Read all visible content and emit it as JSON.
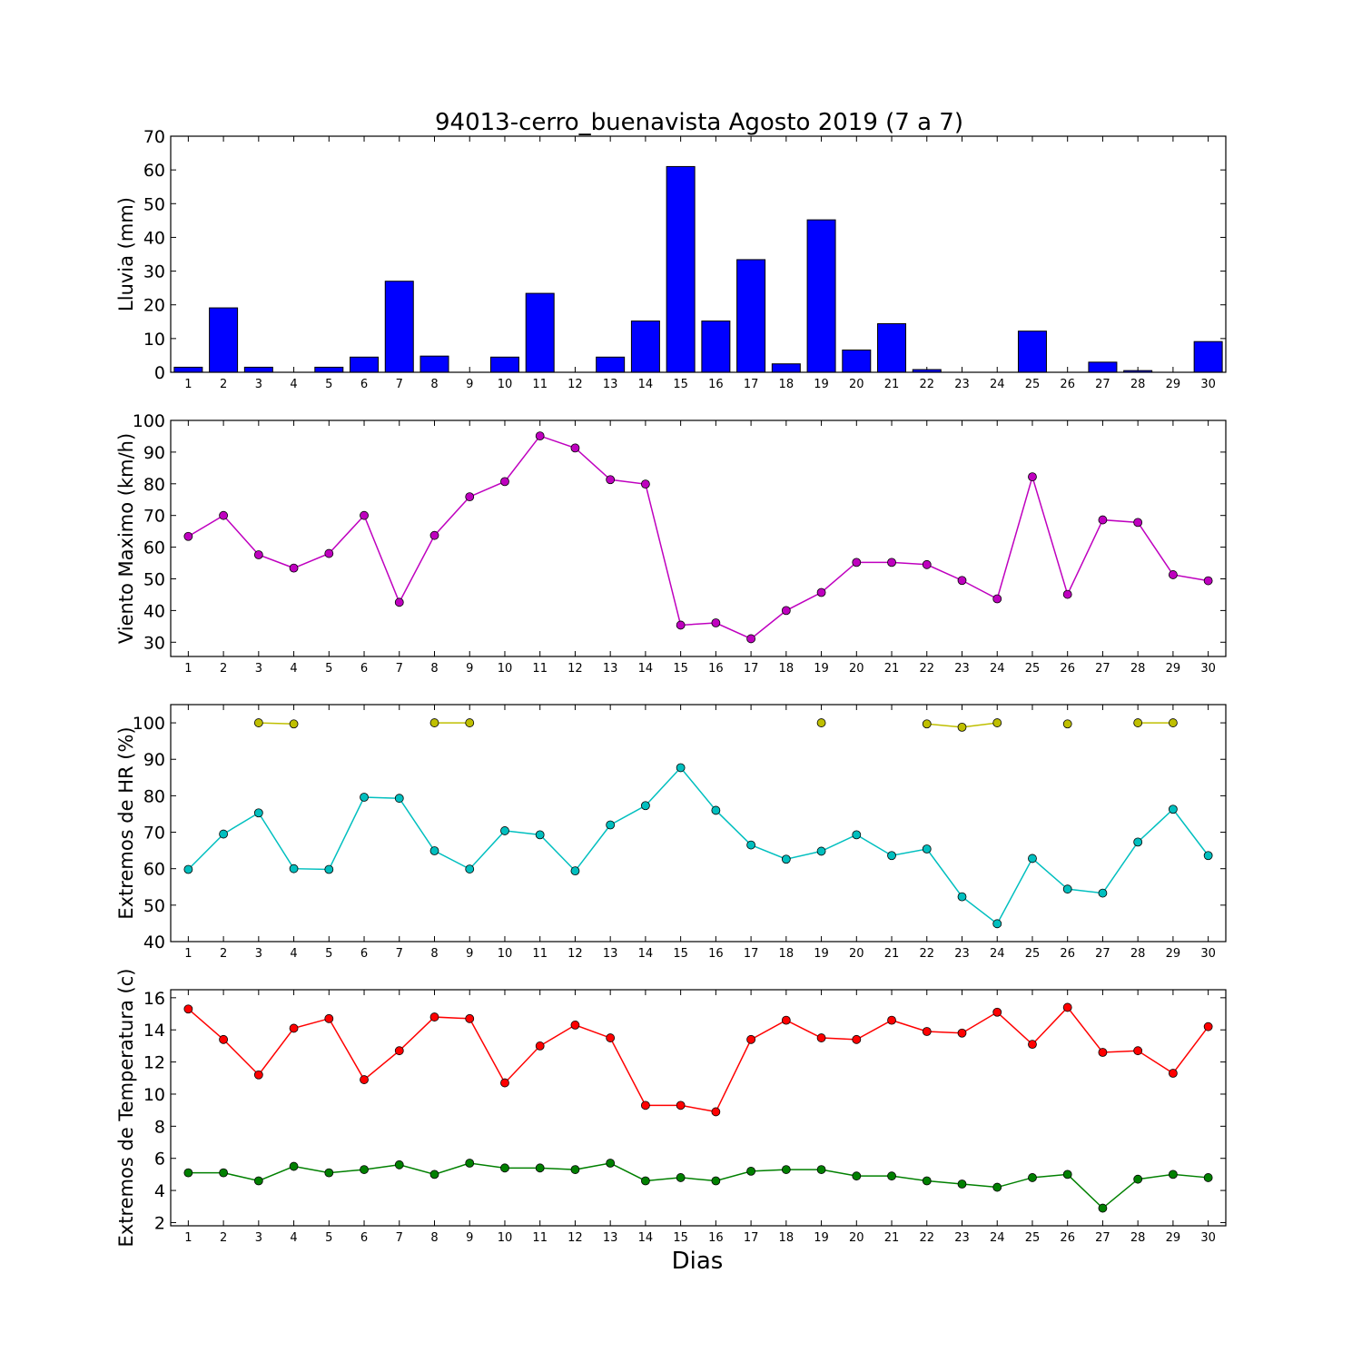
{
  "title": "94013-cerro_buenavista Agosto 2019  (7 a 7)",
  "xlabel": "Dias",
  "chart_data": [
    {
      "type": "bar",
      "ylabel": "Lluvia (mm)",
      "ylim": [
        0,
        70
      ],
      "yticks": [
        0,
        10,
        20,
        30,
        40,
        50,
        60,
        70
      ],
      "categories": [
        "1",
        "2",
        "3",
        "4",
        "5",
        "6",
        "7",
        "8",
        "9",
        "10",
        "11",
        "12",
        "13",
        "14",
        "15",
        "16",
        "17",
        "18",
        "19",
        "20",
        "21",
        "22",
        "23",
        "24",
        "25",
        "26",
        "27",
        "28",
        "29",
        "30"
      ],
      "series": [
        {
          "color": "#0000ff",
          "values": [
            1.5,
            19.1,
            1.5,
            0,
            1.5,
            4.5,
            27.0,
            4.8,
            0,
            4.5,
            23.4,
            0,
            4.5,
            15.2,
            61.0,
            15.2,
            33.4,
            2.5,
            45.2,
            6.6,
            14.4,
            0.8,
            0,
            0,
            12.2,
            0,
            3.0,
            0.5,
            0,
            9.1
          ]
        }
      ]
    },
    {
      "type": "line",
      "ylabel": "Viento Maximo (km/h)",
      "ylim": [
        25.5,
        100
      ],
      "yticks": [
        30,
        40,
        50,
        60,
        70,
        80,
        90,
        100
      ],
      "x": [
        1,
        2,
        3,
        4,
        5,
        6,
        7,
        8,
        9,
        10,
        11,
        12,
        13,
        14,
        15,
        16,
        17,
        18,
        19,
        20,
        21,
        22,
        23,
        24,
        25,
        26,
        27,
        28,
        29,
        30
      ],
      "series": [
        {
          "color": "#bf00bf",
          "values": [
            63.4,
            70.0,
            57.6,
            53.4,
            58.0,
            70.0,
            42.6,
            63.7,
            75.9,
            80.7,
            95.1,
            91.3,
            81.3,
            79.9,
            35.4,
            36.1,
            31.1,
            40.0,
            45.7,
            55.2,
            55.2,
            54.5,
            49.5,
            43.7,
            82.2,
            45.1,
            68.6,
            67.8,
            51.3,
            49.4
          ]
        }
      ]
    },
    {
      "type": "line",
      "ylabel": "Extremos de HR (%)",
      "ylim": [
        40,
        105
      ],
      "yticks": [
        40,
        50,
        60,
        70,
        80,
        90,
        100
      ],
      "x": [
        1,
        2,
        3,
        4,
        5,
        6,
        7,
        8,
        9,
        10,
        11,
        12,
        13,
        14,
        15,
        16,
        17,
        18,
        19,
        20,
        21,
        22,
        23,
        24,
        25,
        26,
        27,
        28,
        29,
        30
      ],
      "series": [
        {
          "color": "#bfbf00",
          "values": [
            null,
            null,
            100,
            99.7,
            null,
            null,
            null,
            100,
            100,
            null,
            null,
            null,
            null,
            null,
            null,
            null,
            null,
            null,
            100,
            null,
            null,
            99.7,
            98.8,
            100,
            null,
            99.7,
            null,
            100,
            100,
            null
          ]
        },
        {
          "color": "#00bfbf",
          "values": [
            59.8,
            69.5,
            75.3,
            60.0,
            59.8,
            79.6,
            79.3,
            64.9,
            59.9,
            70.4,
            69.3,
            59.4,
            72.0,
            77.3,
            87.7,
            76.0,
            66.5,
            62.6,
            64.8,
            69.3,
            63.6,
            65.4,
            52.3,
            44.9,
            62.8,
            54.4,
            53.3,
            67.3,
            76.3,
            63.6
          ]
        }
      ]
    },
    {
      "type": "line",
      "ylabel": "Extremos de Temperatura (c)",
      "ylim": [
        1.8,
        16.5
      ],
      "yticks": [
        2,
        4,
        6,
        8,
        10,
        12,
        14,
        16
      ],
      "x": [
        1,
        2,
        3,
        4,
        5,
        6,
        7,
        8,
        9,
        10,
        11,
        12,
        13,
        14,
        15,
        16,
        17,
        18,
        19,
        20,
        21,
        22,
        23,
        24,
        25,
        26,
        27,
        28,
        29,
        30
      ],
      "series": [
        {
          "color": "#ff0000",
          "values": [
            15.3,
            13.4,
            11.2,
            14.1,
            14.7,
            10.9,
            12.7,
            14.8,
            14.7,
            10.7,
            13.0,
            14.3,
            13.5,
            9.3,
            9.3,
            8.9,
            13.4,
            14.6,
            13.5,
            13.4,
            14.6,
            13.9,
            13.8,
            15.1,
            13.1,
            15.4,
            12.6,
            12.7,
            11.3,
            14.2
          ]
        },
        {
          "color": "#008000",
          "values": [
            5.1,
            5.1,
            4.6,
            5.5,
            5.1,
            5.3,
            5.6,
            5.0,
            5.7,
            5.4,
            5.4,
            5.3,
            5.7,
            4.6,
            4.8,
            4.6,
            5.2,
            5.3,
            5.3,
            4.9,
            4.9,
            4.6,
            4.4,
            4.2,
            4.8,
            5.0,
            2.9,
            4.7,
            5.0,
            4.8
          ]
        }
      ]
    }
  ]
}
